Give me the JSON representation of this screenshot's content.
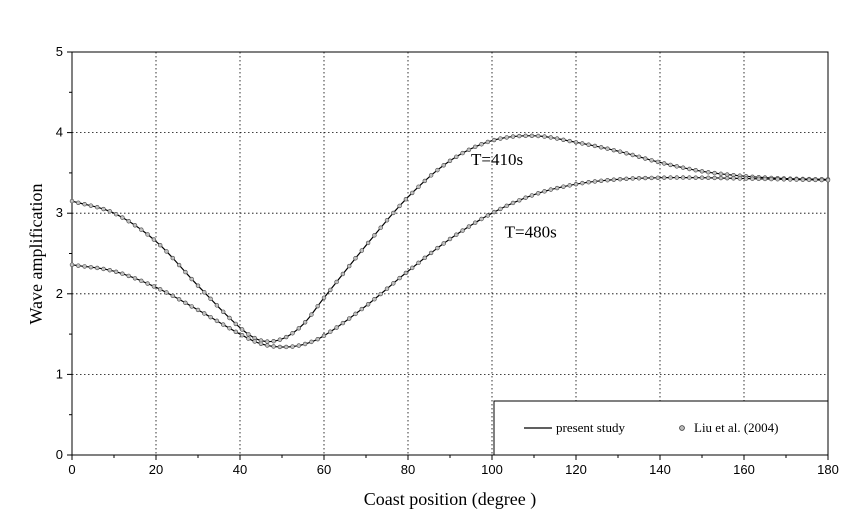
{
  "chart_data": {
    "type": "line",
    "title": "",
    "xlabel": "Coast  position (degree )",
    "ylabel": "Wave  amplification",
    "xlim": [
      0,
      180
    ],
    "ylim": [
      0,
      5
    ],
    "x_ticks": [
      0,
      20,
      40,
      60,
      80,
      100,
      120,
      140,
      160,
      180
    ],
    "y_ticks": [
      0,
      1,
      2,
      3,
      4,
      5
    ],
    "grid": true,
    "legend_position": "bottom-right",
    "legend": {
      "line_label": "present study",
      "marker_label": "Liu et al. (2004)"
    },
    "annotations": [
      {
        "text": "T=410s",
        "x": 95,
        "y": 3.6
      },
      {
        "text": "T=480s",
        "x": 103,
        "y": 2.7
      }
    ],
    "x": [
      0,
      10,
      20,
      30,
      40,
      45,
      50,
      55,
      60,
      70,
      80,
      90,
      100,
      110,
      120,
      130,
      140,
      150,
      160,
      170,
      180
    ],
    "series": [
      {
        "annotation": "T=410s",
        "values": [
          3.15,
          3.0,
          2.65,
          2.1,
          1.58,
          1.42,
          1.44,
          1.62,
          1.95,
          2.6,
          3.2,
          3.65,
          3.9,
          3.96,
          3.88,
          3.77,
          3.63,
          3.52,
          3.46,
          3.43,
          3.42
        ]
      },
      {
        "annotation": "T=480s",
        "values": [
          2.36,
          2.28,
          2.08,
          1.8,
          1.5,
          1.38,
          1.34,
          1.37,
          1.48,
          1.85,
          2.28,
          2.68,
          3.0,
          3.23,
          3.36,
          3.42,
          3.44,
          3.44,
          3.43,
          3.42,
          3.41
        ]
      }
    ]
  }
}
